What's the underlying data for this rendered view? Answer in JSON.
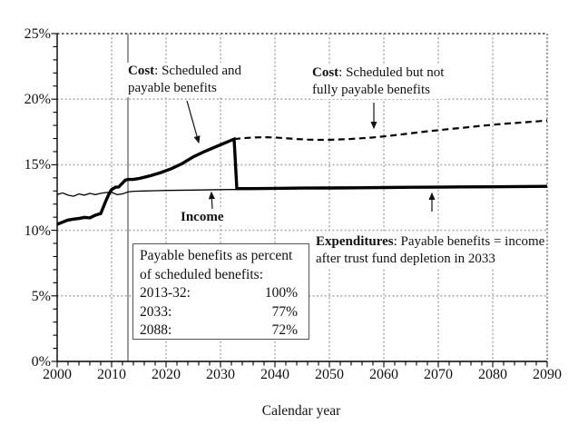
{
  "chart_data": {
    "type": "line",
    "title": "",
    "xlabel": "Calendar year",
    "ylabel": "",
    "xlim": [
      2000,
      2090
    ],
    "ylim": [
      0,
      25
    ],
    "grid": {
      "horizontal": "dotted every 5%",
      "vertical": "dotted every 10 years",
      "x_minor_tick_step": 2,
      "y_minor_tick_step": 1
    },
    "divider_year": 2013,
    "legend_position": "none",
    "x_ticks": [
      {
        "v": 2000,
        "label": "2000"
      },
      {
        "v": 2010,
        "label": "2010"
      },
      {
        "v": 2020,
        "label": "2020"
      },
      {
        "v": 2030,
        "label": "2030"
      },
      {
        "v": 2040,
        "label": "2040"
      },
      {
        "v": 2050,
        "label": "2050"
      },
      {
        "v": 2060,
        "label": "2060"
      },
      {
        "v": 2070,
        "label": "2070"
      },
      {
        "v": 2080,
        "label": "2080"
      },
      {
        "v": 2090,
        "label": "2090"
      }
    ],
    "y_ticks": [
      {
        "v": 0,
        "label": "0%"
      },
      {
        "v": 5,
        "label": "5%"
      },
      {
        "v": 10,
        "label": "10%"
      },
      {
        "v": 15,
        "label": "15%"
      },
      {
        "v": 20,
        "label": "20%"
      },
      {
        "v": 25,
        "label": "25%"
      }
    ],
    "series": [
      {
        "key": "income",
        "name": "Income",
        "style": "thin-solid",
        "points": [
          [
            2000,
            12.72
          ],
          [
            2001,
            12.85
          ],
          [
            2002,
            12.68
          ],
          [
            2003,
            12.6
          ],
          [
            2004,
            12.78
          ],
          [
            2005,
            12.68
          ],
          [
            2006,
            12.82
          ],
          [
            2007,
            12.72
          ],
          [
            2008,
            12.82
          ],
          [
            2009,
            12.88
          ],
          [
            2010,
            12.9
          ],
          [
            2011,
            12.72
          ],
          [
            2012,
            12.78
          ],
          [
            2013,
            12.92
          ],
          [
            2014,
            12.98
          ],
          [
            2016,
            13.0
          ],
          [
            2018,
            13.02
          ],
          [
            2020,
            13.04
          ],
          [
            2025,
            13.07
          ],
          [
            2030,
            13.1
          ],
          [
            2035,
            13.12
          ],
          [
            2040,
            13.15
          ],
          [
            2045,
            13.17
          ],
          [
            2050,
            13.19
          ],
          [
            2055,
            13.21
          ],
          [
            2060,
            13.23
          ],
          [
            2065,
            13.25
          ],
          [
            2070,
            13.27
          ],
          [
            2075,
            13.29
          ],
          [
            2080,
            13.3
          ],
          [
            2085,
            13.32
          ],
          [
            2090,
            13.33
          ]
        ]
      },
      {
        "key": "cost_scheduled_dashed",
        "name": "Cost: Scheduled but not fully payable benefits",
        "style": "dashed",
        "points": [
          [
            2032.5,
            16.95
          ],
          [
            2034,
            17.02
          ],
          [
            2036,
            17.08
          ],
          [
            2038,
            17.1
          ],
          [
            2040,
            17.08
          ],
          [
            2042,
            17.02
          ],
          [
            2044,
            16.96
          ],
          [
            2046,
            16.92
          ],
          [
            2048,
            16.9
          ],
          [
            2050,
            16.9
          ],
          [
            2052,
            16.93
          ],
          [
            2054,
            16.97
          ],
          [
            2056,
            17.02
          ],
          [
            2058,
            17.08
          ],
          [
            2060,
            17.16
          ],
          [
            2062,
            17.25
          ],
          [
            2064,
            17.35
          ],
          [
            2066,
            17.45
          ],
          [
            2068,
            17.55
          ],
          [
            2070,
            17.63
          ],
          [
            2072,
            17.72
          ],
          [
            2074,
            17.8
          ],
          [
            2076,
            17.88
          ],
          [
            2078,
            17.97
          ],
          [
            2080,
            18.05
          ],
          [
            2082,
            18.12
          ],
          [
            2084,
            18.18
          ],
          [
            2086,
            18.24
          ],
          [
            2088,
            18.3
          ],
          [
            2090,
            18.37
          ]
        ]
      },
      {
        "key": "cost_payable",
        "name": "Cost: Scheduled and payable benefits (expenditures = payable benefits after trust fund depletion in 2033)",
        "style": "thick-solid",
        "points": [
          [
            2000,
            10.45
          ],
          [
            2001,
            10.62
          ],
          [
            2002,
            10.78
          ],
          [
            2003,
            10.85
          ],
          [
            2004,
            10.9
          ],
          [
            2005,
            10.98
          ],
          [
            2006,
            10.95
          ],
          [
            2007,
            11.15
          ],
          [
            2008,
            11.28
          ],
          [
            2009,
            12.3
          ],
          [
            2009.6,
            12.85
          ],
          [
            2010,
            13.1
          ],
          [
            2010.7,
            13.28
          ],
          [
            2011.3,
            13.3
          ],
          [
            2012,
            13.6
          ],
          [
            2012.5,
            13.82
          ],
          [
            2013,
            13.88
          ],
          [
            2014,
            13.88
          ],
          [
            2015,
            13.95
          ],
          [
            2017,
            14.15
          ],
          [
            2019,
            14.4
          ],
          [
            2021,
            14.7
          ],
          [
            2023,
            15.1
          ],
          [
            2025,
            15.6
          ],
          [
            2027,
            16.0
          ],
          [
            2029,
            16.35
          ],
          [
            2031,
            16.7
          ],
          [
            2032.5,
            16.95
          ],
          [
            2033,
            13.18
          ],
          [
            2036,
            13.18
          ],
          [
            2040,
            13.2
          ],
          [
            2045,
            13.22
          ],
          [
            2050,
            13.23
          ],
          [
            2055,
            13.24
          ],
          [
            2060,
            13.26
          ],
          [
            2065,
            13.28
          ],
          [
            2070,
            13.29
          ],
          [
            2075,
            13.31
          ],
          [
            2080,
            13.32
          ],
          [
            2085,
            13.34
          ],
          [
            2090,
            13.35
          ]
        ]
      }
    ],
    "annotations": {
      "cost_payable": {
        "lead": "Cost",
        "rest1": ": Scheduled and",
        "rest2": "payable benefits"
      },
      "cost_scheduled": {
        "lead": "Cost",
        "rest1": ": Scheduled but not",
        "rest2": "fully payable benefits"
      },
      "income": {
        "label": "Income"
      },
      "expenditures": {
        "lead": "Expenditures",
        "rest1": ": Payable benefits = income",
        "rest2": "after trust fund depletion in 2033"
      }
    },
    "info_box": {
      "line1": "Payable benefits as percent",
      "line2": "of scheduled benefits:",
      "rows": [
        {
          "label": "2013-32:",
          "value": "100%"
        },
        {
          "label": "2033:",
          "value": "77%"
        },
        {
          "label": "2088:",
          "value": "72%"
        }
      ]
    },
    "colors": {
      "line": "#000000",
      "gridline": "#ababab",
      "top_border": "#333333",
      "right_border": "#999999",
      "divider": "#909090",
      "box_border": "#555555"
    }
  }
}
